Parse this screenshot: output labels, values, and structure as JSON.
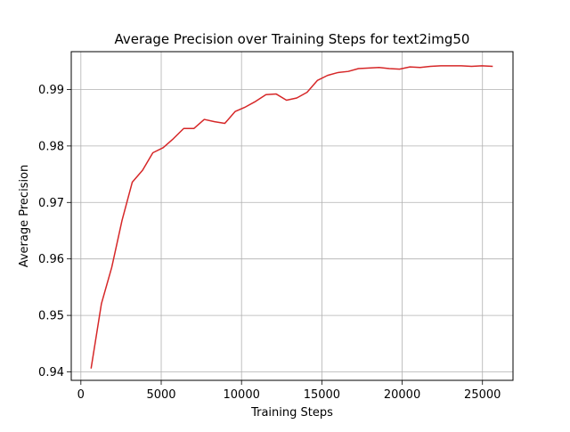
{
  "chart_data": {
    "type": "line",
    "title": "Average Precision over Training Steps for text2img50",
    "xlabel": "Training Steps",
    "ylabel": "Average Precision",
    "xlim": [
      -600,
      26900
    ],
    "ylim": [
      0.9385,
      0.9967
    ],
    "grid": true,
    "x_ticks": [
      0,
      5000,
      10000,
      15000,
      20000,
      25000
    ],
    "x_tick_labels": [
      "0",
      "5000",
      "10000",
      "15000",
      "20000",
      "25000"
    ],
    "y_ticks": [
      0.94,
      0.95,
      0.96,
      0.97,
      0.98,
      0.99
    ],
    "y_tick_labels": [
      "0.94",
      "0.95",
      "0.96",
      "0.97",
      "0.98",
      "0.99"
    ],
    "series": [
      {
        "color": "#d62728",
        "x": [
          640,
          1280,
          1920,
          2560,
          3200,
          3840,
          4480,
          5120,
          5760,
          6400,
          7040,
          7680,
          8320,
          8960,
          9600,
          10240,
          10880,
          11520,
          12160,
          12800,
          13440,
          14080,
          14720,
          15360,
          16000,
          16640,
          17280,
          17920,
          18560,
          19200,
          19840,
          20480,
          21120,
          21760,
          22400,
          23040,
          23680,
          24320,
          24960,
          25600
        ],
        "y": [
          0.9407,
          0.9521,
          0.9585,
          0.9668,
          0.9736,
          0.9757,
          0.9788,
          0.9797,
          0.9813,
          0.9831,
          0.9831,
          0.9847,
          0.9843,
          0.984,
          0.9861,
          0.9869,
          0.9879,
          0.9891,
          0.9892,
          0.9881,
          0.9885,
          0.9895,
          0.9916,
          0.9925,
          0.993,
          0.9932,
          0.9937,
          0.9938,
          0.9939,
          0.9937,
          0.9936,
          0.994,
          0.9939,
          0.9941,
          0.9942,
          0.9942,
          0.9942,
          0.9941,
          0.9942,
          0.9941
        ]
      }
    ]
  }
}
